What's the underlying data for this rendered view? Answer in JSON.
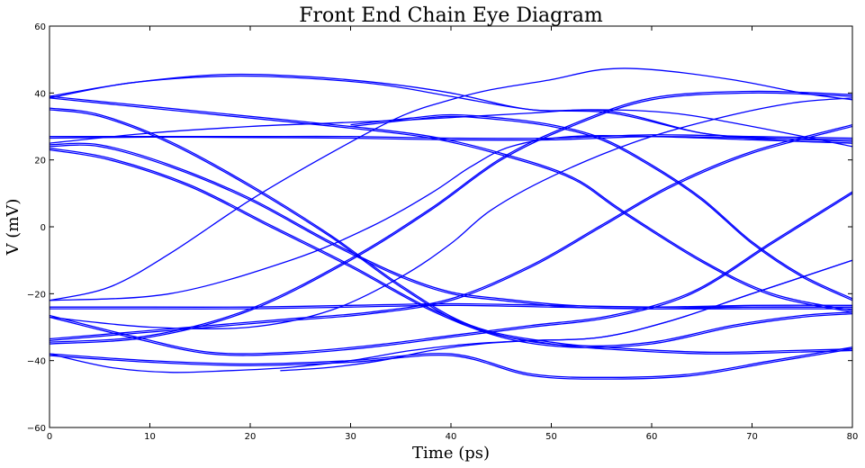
{
  "chart_data": {
    "type": "line",
    "title": "Front End Chain Eye Diagram",
    "xlabel": "Time (ps)",
    "ylabel": "V (mV)",
    "xlim": [
      0,
      80
    ],
    "ylim": [
      -60,
      60
    ],
    "xticks": [
      "0",
      "10",
      "20",
      "30",
      "40",
      "50",
      "60",
      "70",
      "80"
    ],
    "yticks": [
      "60",
      "40",
      "20",
      "0",
      "−20",
      "−40",
      "−60"
    ],
    "grid": false,
    "line_color": "#0000ff",
    "series": [
      {
        "x": [
          0,
          8,
          17,
          25,
          33,
          40,
          48,
          56,
          65,
          72,
          80
        ],
        "y": [
          39,
          43,
          45.5,
          45,
          43,
          40,
          35,
          34.5,
          28,
          26,
          25
        ]
      },
      {
        "x": [
          0,
          8,
          17,
          25,
          33,
          40,
          48,
          56,
          65,
          72,
          80
        ],
        "y": [
          38.5,
          43,
          45,
          44.5,
          42.5,
          39,
          35,
          34,
          28,
          26.5,
          25.5
        ]
      },
      {
        "x": [
          0,
          10,
          20,
          30,
          38,
          45,
          52,
          57,
          65,
          72,
          80
        ],
        "y": [
          39,
          36,
          33,
          30,
          27,
          22,
          15,
          5,
          -10,
          -20,
          -25
        ]
      },
      {
        "x": [
          0,
          10,
          20,
          30,
          38,
          45,
          52,
          57,
          65,
          72,
          80
        ],
        "y": [
          38.5,
          35.5,
          32.5,
          29.5,
          26.5,
          21.5,
          14.5,
          4.5,
          -10.5,
          -20.5,
          -25.5
        ]
      },
      {
        "x": [
          0,
          10,
          20,
          30,
          40,
          50,
          60,
          70,
          80
        ],
        "y": [
          27,
          27,
          27,
          27,
          26.5,
          26.5,
          27.5,
          27,
          26.5
        ]
      },
      {
        "x": [
          0,
          10,
          20,
          30,
          40,
          50,
          60,
          70,
          80
        ],
        "y": [
          26.5,
          26.8,
          26.7,
          26.5,
          26,
          26,
          27,
          26.5,
          26
        ]
      },
      {
        "x": [
          0,
          5,
          12,
          20,
          28,
          35,
          40,
          45,
          52,
          60,
          70,
          80
        ],
        "y": [
          24,
          24,
          18,
          8,
          -5,
          -15,
          -20,
          -22,
          -24,
          -24.5,
          -24,
          -24
        ]
      },
      {
        "x": [
          0,
          5,
          12,
          20,
          28,
          35,
          40,
          45,
          52,
          60,
          70,
          80
        ],
        "y": [
          24.5,
          24.5,
          18.5,
          8.5,
          -4.5,
          -14.5,
          -19.5,
          -21.5,
          -23.5,
          -24,
          -23.5,
          -23.5
        ]
      },
      {
        "x": [
          0,
          5,
          12,
          20,
          28,
          35,
          42,
          50,
          58,
          66,
          74,
          80
        ],
        "y": [
          35,
          33,
          25,
          12,
          -3,
          -18,
          -30,
          -35,
          -37,
          -38,
          -37.5,
          -37
        ]
      },
      {
        "x": [
          0,
          5,
          12,
          20,
          28,
          35,
          42,
          50,
          58,
          66,
          74,
          80
        ],
        "y": [
          35.5,
          33.5,
          25.5,
          12.5,
          -2.5,
          -17.5,
          -29.5,
          -34.5,
          -36.5,
          -37.5,
          -37,
          -36.5
        ]
      },
      {
        "x": [
          0,
          6,
          14,
          22,
          30,
          38,
          45,
          52,
          60,
          68,
          75,
          80
        ],
        "y": [
          23,
          20,
          12,
          0,
          -12,
          -25,
          -33,
          -36,
          -35,
          -30,
          -27,
          -26
        ]
      },
      {
        "x": [
          0,
          6,
          14,
          22,
          30,
          38,
          45,
          52,
          60,
          68,
          75,
          80
        ],
        "y": [
          23.5,
          20.5,
          12.5,
          0.5,
          -11.5,
          -24.5,
          -32.5,
          -35.5,
          -34.5,
          -29.5,
          -26.5,
          -25.5
        ]
      },
      {
        "x": [
          0,
          10,
          20,
          30,
          40,
          50,
          60,
          70,
          80
        ],
        "y": [
          -24,
          -24,
          -24,
          -23.5,
          -23,
          -23.5,
          -24,
          -24,
          -24
        ]
      },
      {
        "x": [
          0,
          10,
          20,
          30,
          40,
          50,
          60,
          70,
          80
        ],
        "y": [
          -24.5,
          -24.5,
          -24.5,
          -24,
          -23.5,
          -24,
          -24.5,
          -24.5,
          -24.5
        ]
      },
      {
        "x": [
          0,
          10,
          20,
          30,
          38,
          45,
          52,
          60,
          70,
          80
        ],
        "y": [
          -35,
          -33,
          -25,
          -10,
          5,
          20,
          30,
          38,
          40,
          39
        ]
      },
      {
        "x": [
          0,
          10,
          20,
          30,
          38,
          45,
          52,
          60,
          70,
          80
        ],
        "y": [
          -34.5,
          -32.5,
          -24.5,
          -9.5,
          5.5,
          20.5,
          30.5,
          38.5,
          40.5,
          39.5
        ]
      },
      {
        "x": [
          0,
          8,
          16,
          24,
          32,
          40,
          48,
          56,
          64,
          72,
          80
        ],
        "y": [
          -27,
          -33,
          -38,
          -38,
          -36,
          -33,
          -30,
          -27,
          -20,
          -5,
          10
        ]
      },
      {
        "x": [
          0,
          8,
          16,
          24,
          32,
          40,
          48,
          56,
          64,
          72,
          80
        ],
        "y": [
          -26.5,
          -32.5,
          -37.5,
          -37.5,
          -35.5,
          -32.5,
          -29.5,
          -26.5,
          -19.5,
          -4.5,
          10.5
        ]
      },
      {
        "x": [
          0,
          8,
          16,
          24,
          32,
          40,
          48,
          55,
          62,
          70,
          80
        ],
        "y": [
          -34,
          -32,
          -30,
          -28,
          -26,
          -22,
          -12,
          0,
          12,
          22,
          30
        ]
      },
      {
        "x": [
          0,
          8,
          16,
          24,
          32,
          40,
          48,
          55,
          62,
          70,
          80
        ],
        "y": [
          -33.5,
          -31.5,
          -29.5,
          -27.5,
          -25.5,
          -21.5,
          -11.5,
          0.5,
          12.5,
          22.5,
          30.5
        ]
      },
      {
        "x": [
          0,
          6,
          12,
          18,
          24,
          30,
          36,
          42,
          48,
          55,
          62,
          70,
          80
        ],
        "y": [
          -38,
          -42,
          -43.5,
          -43,
          -42,
          -40,
          -37,
          -35,
          -34,
          -33,
          -28,
          -20,
          -10
        ]
      },
      {
        "x": [
          23,
          28,
          33,
          38,
          43,
          48,
          55,
          62,
          70,
          80
        ],
        "y": [
          -43,
          -42,
          -40,
          -37,
          -35,
          -34,
          -33,
          -28,
          -20,
          -10
        ]
      },
      {
        "x": [
          0,
          6,
          12,
          20,
          28,
          35,
          40,
          44,
          50,
          55,
          60,
          68,
          75,
          80
        ],
        "y": [
          -22,
          -18,
          -8,
          8,
          22,
          33,
          38,
          41,
          44,
          47,
          47,
          44,
          40,
          38
        ]
      },
      {
        "x": [
          0,
          10,
          20,
          28,
          35,
          40,
          44,
          50,
          58,
          66,
          74,
          80
        ],
        "y": [
          -27,
          -30,
          -30,
          -25,
          -15,
          -5,
          5,
          15,
          25,
          32,
          37,
          38.5
        ]
      },
      {
        "x": [
          0,
          10,
          20,
          28,
          36,
          42,
          48,
          54,
          62,
          70,
          80
        ],
        "y": [
          25,
          28,
          30,
          31,
          32,
          33,
          34,
          35,
          34,
          30,
          24
        ]
      },
      {
        "x": [
          0,
          12,
          24,
          32,
          38,
          42,
          46,
          52,
          60,
          70,
          80
        ],
        "y": [
          -22,
          -20,
          -10,
          0,
          10,
          18,
          24,
          27,
          27,
          26,
          25
        ]
      },
      {
        "x": [
          0,
          10,
          20,
          30,
          40,
          48,
          56,
          64,
          72,
          80
        ],
        "y": [
          -38,
          -40,
          -41,
          -40,
          -38,
          -44,
          -45,
          -44,
          -40,
          -36
        ]
      },
      {
        "x": [
          0,
          10,
          20,
          30,
          40,
          48,
          56,
          64,
          72,
          80
        ],
        "y": [
          -38.5,
          -40.5,
          -41.5,
          -40.5,
          -38.5,
          -44.5,
          -45.5,
          -44.5,
          -40.5,
          -36.5
        ]
      },
      {
        "x": [
          30,
          36,
          40,
          45,
          50,
          55,
          60,
          65,
          70,
          75,
          80
        ],
        "y": [
          30,
          32,
          33,
          32,
          30,
          26,
          18,
          8,
          -5,
          -15,
          -22
        ]
      },
      {
        "x": [
          30,
          36,
          40,
          45,
          50,
          55,
          60,
          65,
          70,
          75,
          80
        ],
        "y": [
          30.5,
          32.5,
          33.5,
          32.5,
          30.5,
          26.5,
          18.5,
          8.5,
          -4.5,
          -14.5,
          -21.5
        ]
      }
    ]
  }
}
